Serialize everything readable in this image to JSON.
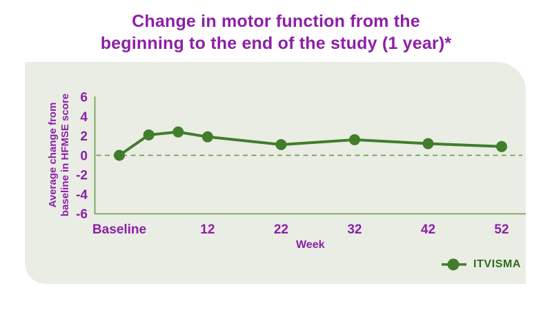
{
  "chart_data": {
    "type": "line",
    "title": "Change in motor function from the beginning to the end of the study (1 year)*",
    "title_lines": [
      "Change in motor function from the",
      "beginning to the end of the study (1 year)*"
    ],
    "xlabel": "Week",
    "ylabel": "Average change from baseline in HFMSE score",
    "ylabel_lines": [
      "Average change from",
      "baseline in HFMSE score"
    ],
    "x_unit": "weeks",
    "x": [
      0,
      4,
      8,
      12,
      22,
      32,
      42,
      52
    ],
    "x_ticks": [
      {
        "week": 0,
        "label": "Baseline"
      },
      {
        "week": 12,
        "label": "12"
      },
      {
        "week": 22,
        "label": "22"
      },
      {
        "week": 32,
        "label": "32"
      },
      {
        "week": 42,
        "label": "42"
      },
      {
        "week": 52,
        "label": "52"
      }
    ],
    "y_ticks": [
      6,
      4,
      2,
      0,
      -2,
      -4,
      -6
    ],
    "ylim": [
      -6,
      6
    ],
    "grid": false,
    "zero_reference_line": "dashed",
    "legend_position": "bottom-right",
    "series": [
      {
        "name": "ITVISMA",
        "values": [
          0,
          2.1,
          2.4,
          1.9,
          1.1,
          1.6,
          1.2,
          0.9
        ]
      }
    ]
  },
  "legend": {
    "label": "ITVISMA"
  },
  "colors": {
    "title-purple": "#8c1fa6",
    "axis-green": "#76a25a",
    "dash-green": "#6fa055",
    "series-green": "#417d2a",
    "legend-green": "#2e6b1d",
    "panel-bg": "#e9ede4",
    "page-bg": "#ffffff"
  }
}
